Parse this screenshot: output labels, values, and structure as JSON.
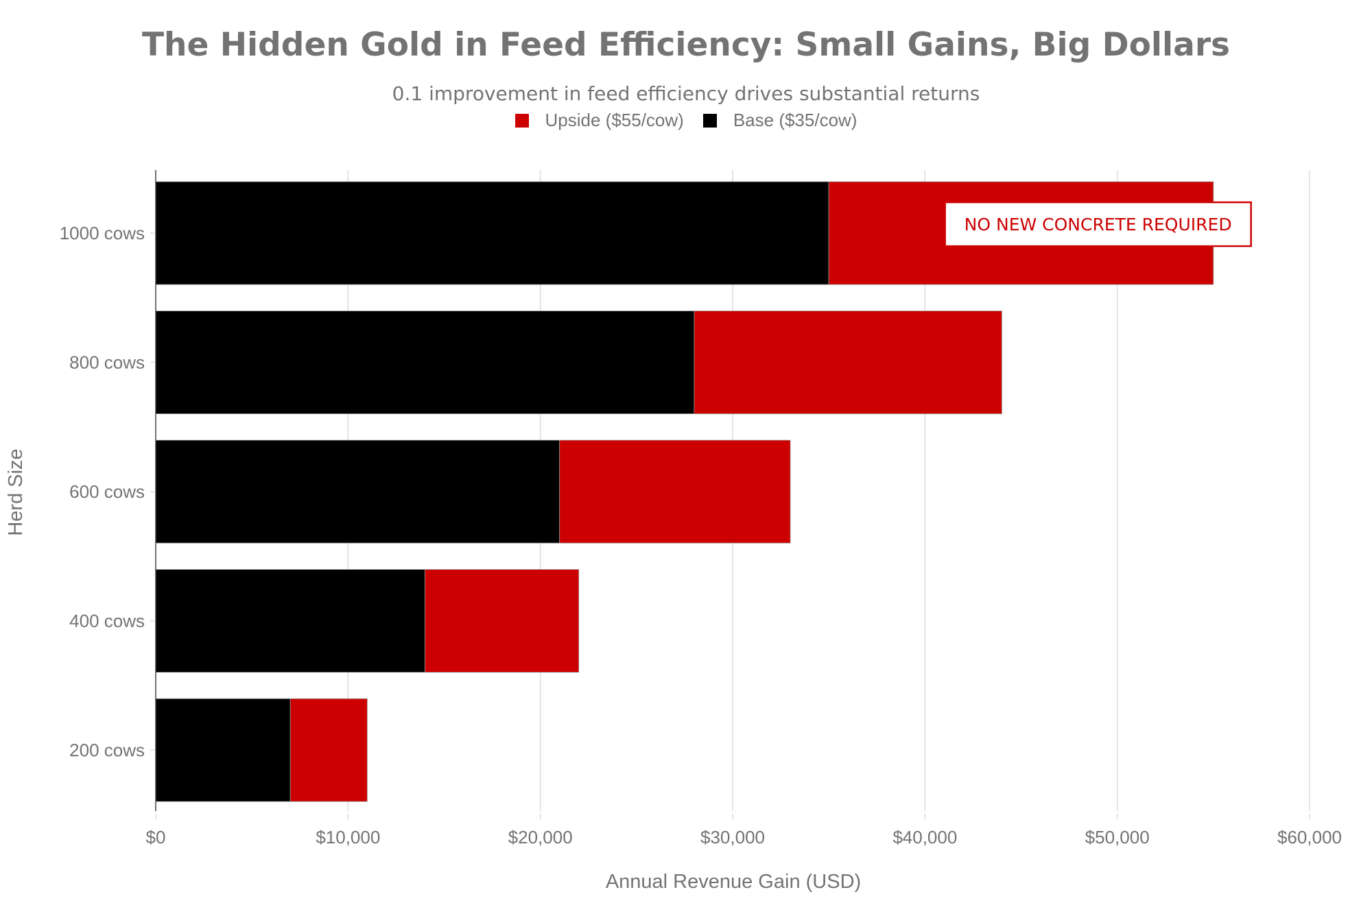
{
  "chart_data": {
    "type": "bar",
    "orientation": "horizontal",
    "stacked": true,
    "title": "The Hidden Gold in Feed Efficiency: Small Gains, Big Dollars",
    "subtitle": "0.1 improvement in feed efficiency drives substantial returns",
    "xlabel": "Annual Revenue Gain (USD)",
    "ylabel": "Herd Size",
    "categories": [
      "200 cows",
      "400 cows",
      "600 cows",
      "800 cows",
      "1000 cows"
    ],
    "series": [
      {
        "name": "Base ($35/cow)",
        "color": "#000000",
        "values": [
          7000,
          14000,
          21000,
          28000,
          35000
        ]
      },
      {
        "name": "Upside ($55/cow)",
        "color": "#cc0000",
        "values": [
          4000,
          8000,
          12000,
          16000,
          20000
        ]
      }
    ],
    "legend_order": [
      "Upside ($55/cow)",
      "Base ($35/cow)"
    ],
    "legend_position": "top-center",
    "xlim": [
      0,
      60000
    ],
    "xticks": [
      0,
      10000,
      20000,
      30000,
      40000,
      50000,
      60000
    ],
    "xtick_labels": [
      "$0",
      "$10,000",
      "$20,000",
      "$30,000",
      "$40,000",
      "$50,000",
      "$60,000"
    ],
    "grid": "vertical",
    "annotation": {
      "text": "NO NEW CONCRETE REQUIRED",
      "category": "1000 cows",
      "x": 49000,
      "color": "#cc0000"
    }
  }
}
